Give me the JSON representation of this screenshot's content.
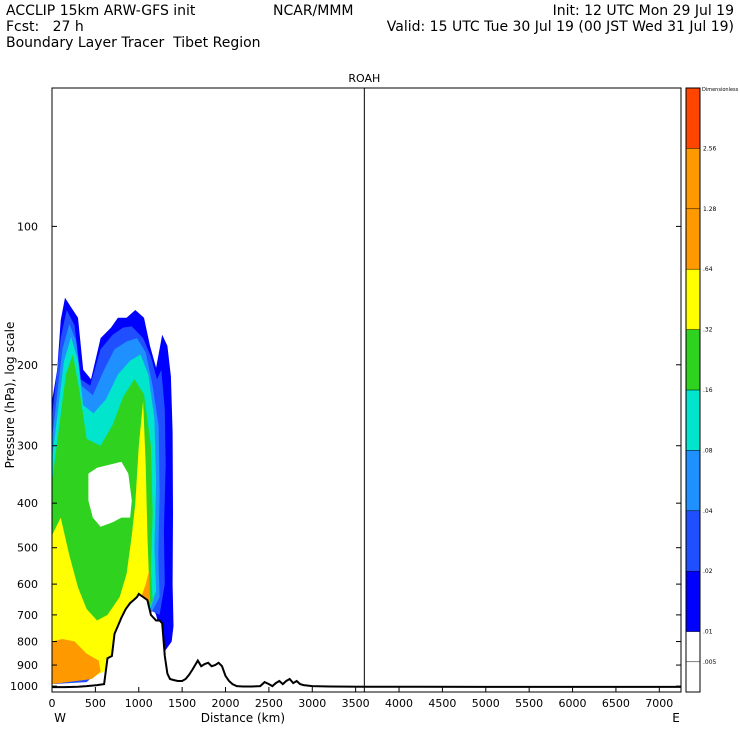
{
  "header": {
    "model": "ACCLIP 15km ARW-GFS init",
    "org": "NCAR/MMM",
    "init": "Init: 12 UTC Mon 29 Jul 19",
    "fcst": "Fcst:   27 h",
    "valid": "Valid: 15 UTC Tue 30 Jul 19 (00 JST Wed 31 Jul 19)",
    "product": "Boundary Layer Tracer  Tibet Region"
  },
  "colors": {
    "levels": [
      "#ffffff",
      "#0000ff",
      "#1f4fff",
      "#1e90ff",
      "#00e5cc",
      "#2fd21f",
      "#ffff00",
      "#ff9900",
      "#ff4500"
    ],
    "terrain": "#000000"
  },
  "chart_data": {
    "type": "heatmap",
    "title": "ROAH",
    "xlabel": "Distance (km)",
    "ylabel": "Pressure (hPa), log scale",
    "x_ticks": [
      "0",
      "500",
      "1000",
      "1500",
      "2000",
      "2500",
      "3000",
      "3500",
      "4000",
      "4500",
      "5000",
      "5500",
      "6000",
      "6500",
      "7000"
    ],
    "xlim": [
      0,
      7250
    ],
    "y_ticks": [
      "100",
      "200",
      "300",
      "400",
      "500",
      "600",
      "700",
      "800",
      "900",
      "1000"
    ],
    "ylim": [
      1030,
      50
    ],
    "y_scale": "log",
    "direction_left": "W",
    "direction_right": "E",
    "marker_x": 3600,
    "colorbar": {
      "label": "Dimensionless",
      "ticks": [
        ".005",
        ".01",
        ".02",
        ".04",
        ".08",
        ".16",
        ".32",
        ".64",
        "1.28",
        "2.56"
      ]
    },
    "terrain_profile": {
      "x": [
        0,
        150,
        300,
        400,
        520,
        600,
        640,
        690,
        720,
        760,
        800,
        850,
        900,
        940,
        980,
        1000,
        1050,
        1100,
        1140,
        1200,
        1240,
        1270,
        1300,
        1330,
        1360,
        1400,
        1450,
        1500,
        1540,
        1580,
        1620,
        1680,
        1720,
        1760,
        1800,
        1840,
        1880,
        1920,
        1960,
        2000,
        2040,
        2080,
        2130,
        2200,
        2300,
        2400,
        2450,
        2500,
        2540,
        2580,
        2620,
        2660,
        2700,
        2740,
        2780,
        2820,
        2860,
        2900,
        3000,
        3200,
        3600,
        4200,
        5000,
        6000,
        7250
      ],
      "p": [
        1005,
        1005,
        1003,
        1000,
        995,
        990,
        870,
        860,
        770,
        740,
        710,
        680,
        660,
        650,
        640,
        630,
        640,
        650,
        700,
        720,
        720,
        730,
        860,
        940,
        965,
        970,
        975,
        975,
        965,
        945,
        920,
        880,
        905,
        895,
        890,
        905,
        900,
        890,
        905,
        950,
        975,
        990,
        1000,
        1002,
        1002,
        1000,
        980,
        990,
        1000,
        985,
        975,
        990,
        975,
        965,
        985,
        975,
        990,
        995,
        1000,
        1002,
        1003,
        1003,
        1004,
        1004,
        1004
      ]
    }
  }
}
